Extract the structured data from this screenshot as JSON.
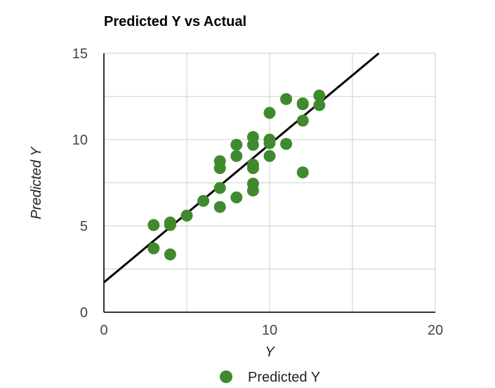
{
  "chart_data": {
    "type": "scatter",
    "title": "Predicted Y vs Actual",
    "xlabel": "Y",
    "ylabel": "Predicted Y",
    "xlim": [
      0,
      20
    ],
    "ylim": [
      0,
      15
    ],
    "x_ticks": [
      "0",
      "10",
      "20"
    ],
    "y_ticks": [
      "0",
      "5",
      "10",
      "15"
    ],
    "grid": true,
    "legend_position": "bottom",
    "colors": {
      "points": "#3f8a2e",
      "trendline": "#000000",
      "grid": "#dddddd",
      "axis": "#333333"
    },
    "series": [
      {
        "name": "Predicted Y",
        "x": [
          3,
          3,
          4,
          4,
          4,
          5,
          6,
          7,
          7,
          7,
          7,
          8,
          8,
          8,
          9,
          9,
          9,
          9,
          9,
          9,
          10,
          10,
          10,
          10,
          11,
          11,
          12,
          12,
          12,
          12,
          13,
          13
        ],
        "y": [
          5.05,
          3.7,
          5.2,
          5.05,
          3.35,
          5.6,
          6.45,
          8.75,
          8.35,
          7.2,
          6.1,
          9.7,
          9.05,
          6.65,
          10.15,
          9.7,
          8.55,
          8.35,
          7.45,
          7.05,
          11.55,
          10.0,
          9.8,
          9.05,
          12.35,
          9.75,
          12.1,
          12.05,
          11.1,
          8.1,
          12.55,
          12.0
        ]
      }
    ],
    "trendline": {
      "intercept": 1.73,
      "slope": 0.8
    }
  }
}
